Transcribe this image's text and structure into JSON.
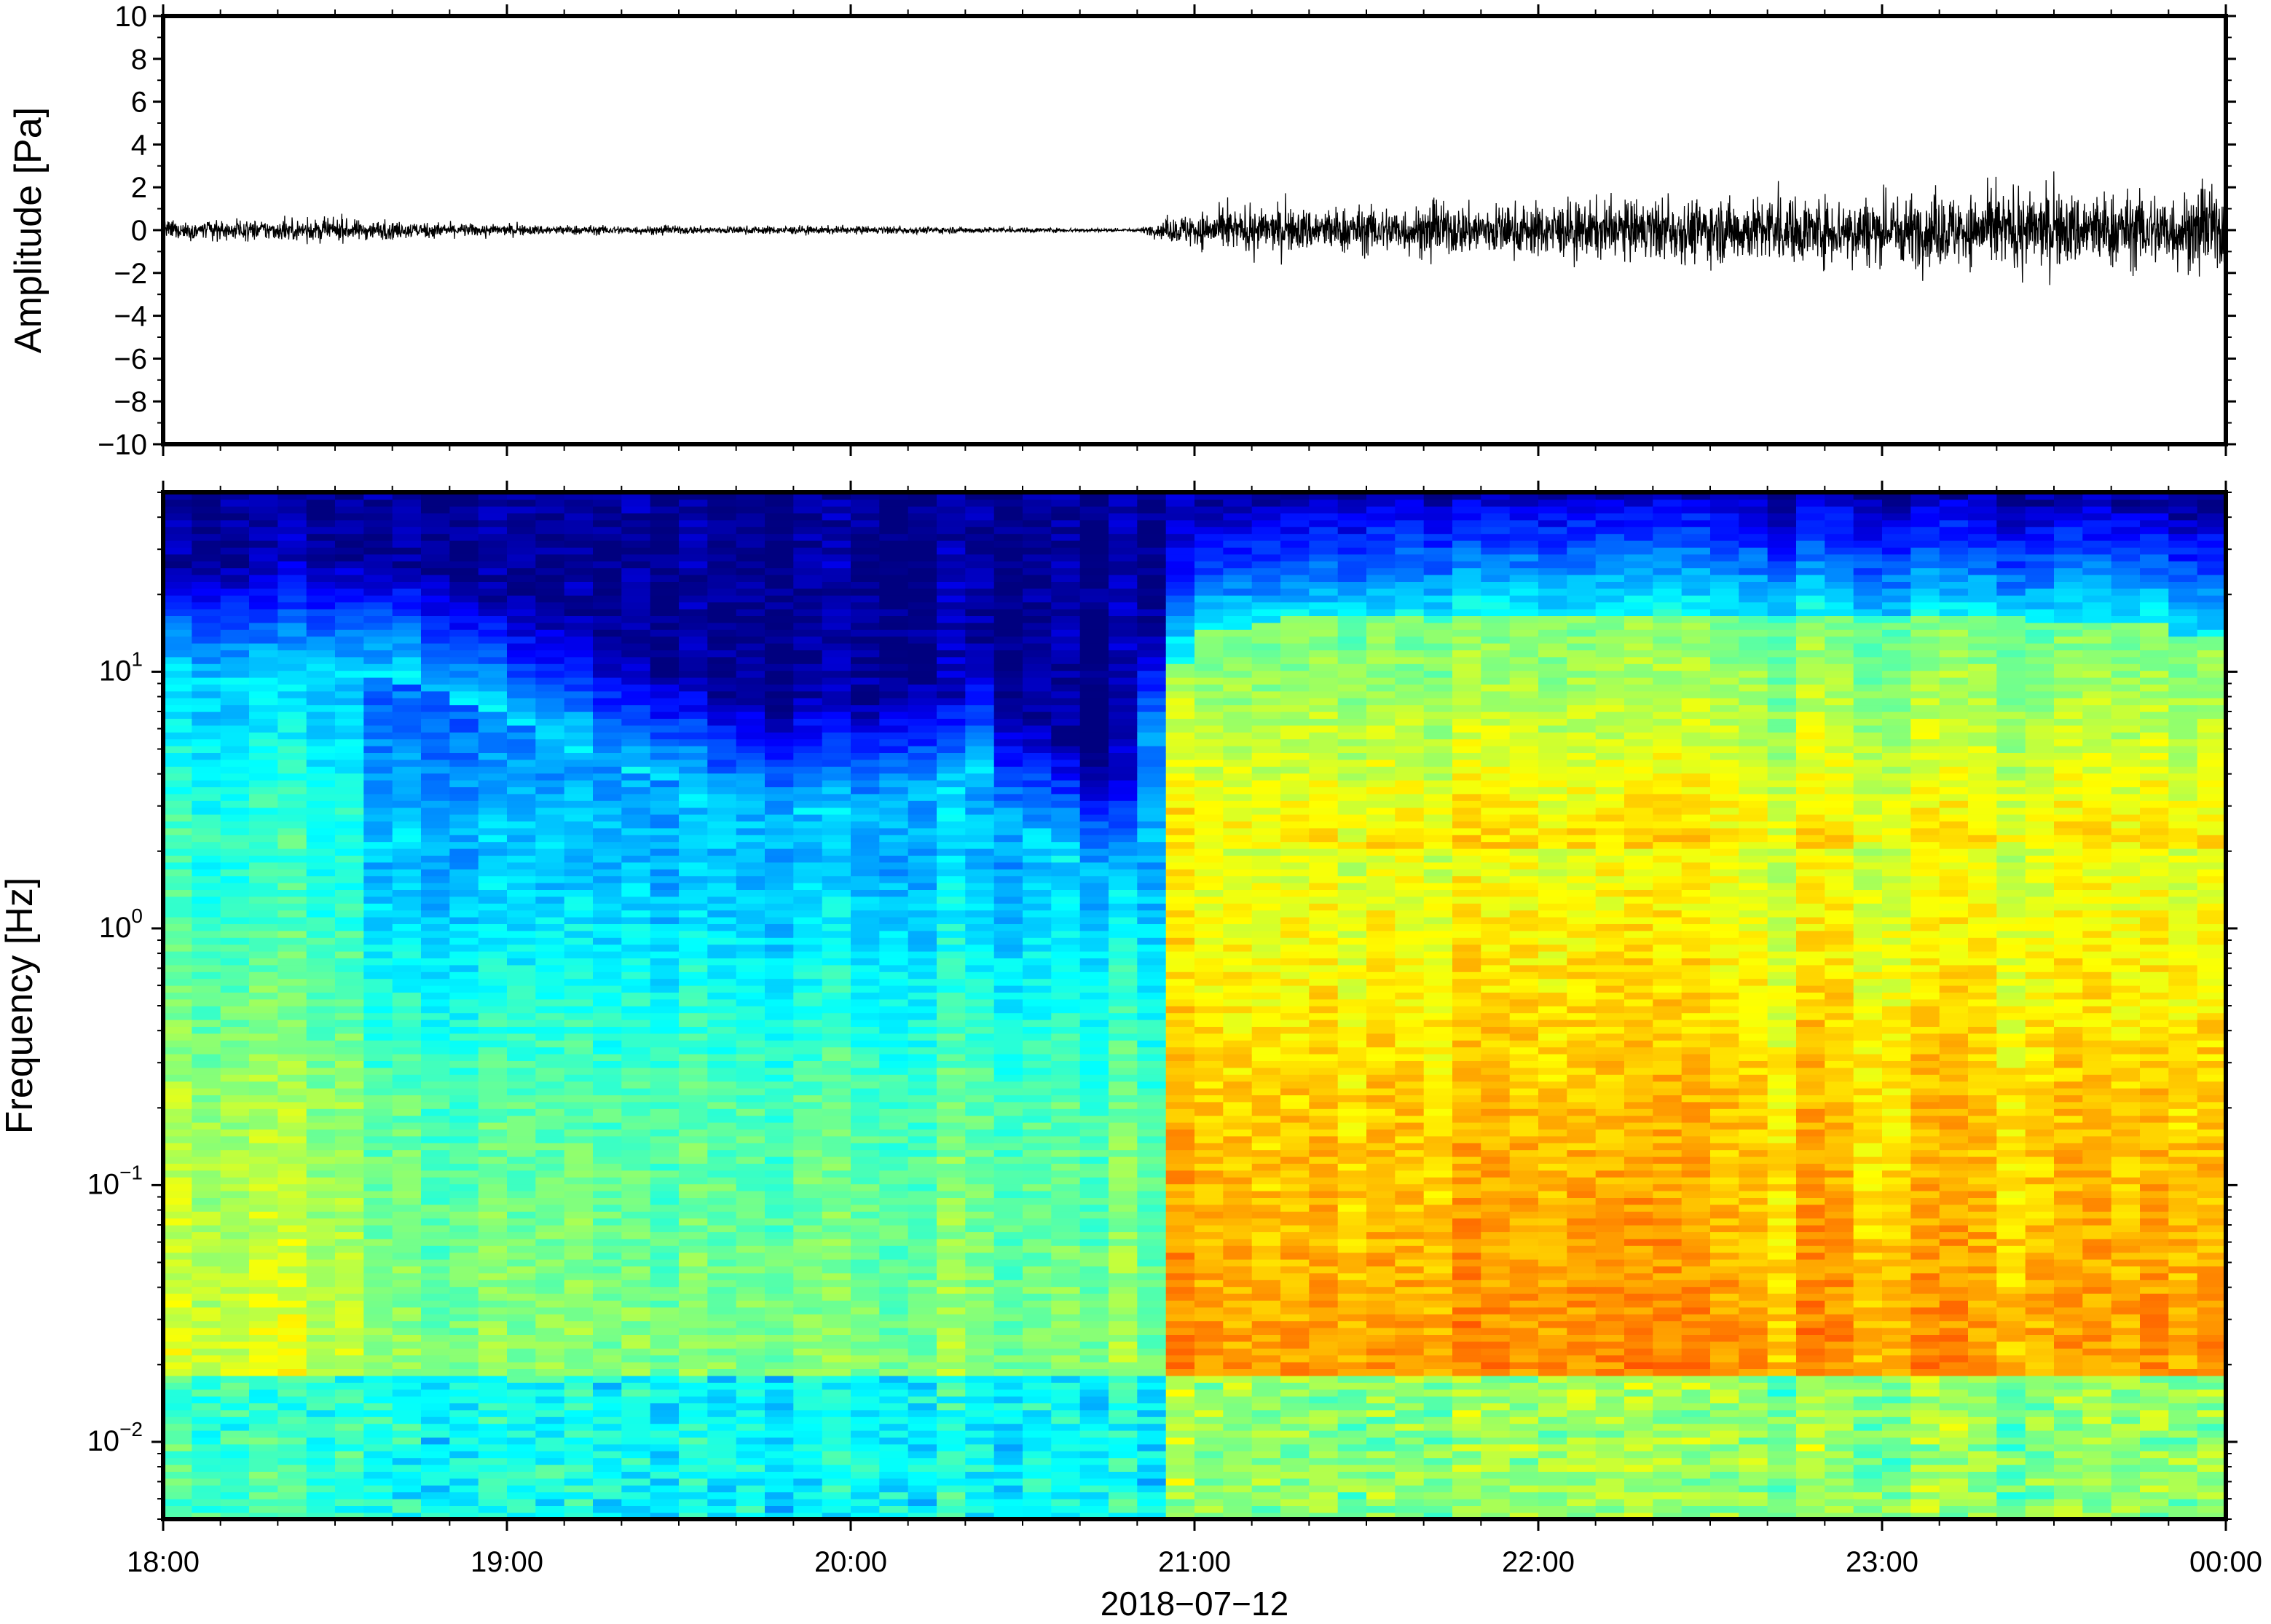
{
  "chart_data": [
    {
      "type": "line",
      "title": "",
      "xlabel": "",
      "ylabel": "Amplitude [Pa]",
      "xlim": [
        "2018-07-12 18:00",
        "2018-07-13 00:00"
      ],
      "ylim": [
        -10,
        10
      ],
      "yticks": [
        10,
        8,
        6,
        4,
        2,
        0,
        -2,
        -4,
        -6,
        -8,
        -10
      ],
      "ytick_labels": [
        "10",
        "8",
        "6",
        "4",
        "2",
        "0",
        "−2",
        "−4",
        "−6",
        "−8",
        "−10"
      ],
      "grid": false,
      "legend": "none",
      "series": [
        {
          "line_color": "#000000",
          "envelope": {
            "time": [
              "18:00",
              "18:30",
              "19:00",
              "19:30",
              "20:00",
              "20:30",
              "20:50",
              "21:00",
              "21:30",
              "22:00",
              "22:30",
              "23:00",
              "23:30",
              "00:00"
            ],
            "half_amplitude": [
              0.35,
              0.4,
              0.2,
              0.15,
              0.15,
              0.1,
              0.05,
              0.7,
              0.9,
              1.0,
              1.2,
              1.3,
              1.4,
              1.5
            ],
            "peak_abs": [
              0.7,
              0.8,
              0.4,
              0.3,
              0.3,
              0.2,
              0.1,
              1.6,
              1.9,
              2.0,
              2.3,
              2.5,
              2.8,
              2.6
            ]
          }
        }
      ]
    },
    {
      "type": "heatmap",
      "title": "",
      "xlabel": "2018−07−12",
      "ylabel": "Frequency [Hz]",
      "xlim": [
        "2018-07-12 18:00",
        "2018-07-13 00:00"
      ],
      "xticks": [
        "18:00",
        "19:00",
        "20:00",
        "21:00",
        "22:00",
        "23:00",
        "00:00"
      ],
      "ylim": [
        0.005,
        50
      ],
      "yscale": "log",
      "yticks": [
        0.01,
        0.1,
        1,
        10
      ],
      "ytick_labels": [
        {
          "base": "10",
          "exp": "−2"
        },
        {
          "base": "10",
          "exp": "−1"
        },
        {
          "base": "10",
          "exp": "0"
        },
        {
          "base": "10",
          "exp": "1"
        }
      ],
      "colormap": [
        "#00007f",
        "#0000ff",
        "#007fff",
        "#00ffff",
        "#7fff7f",
        "#ffff00",
        "#ff7f00",
        "#ff0000",
        "#7f0000"
      ],
      "time_bins": 72,
      "cutoff_frequency_hz": [
        25,
        25,
        28,
        27,
        25,
        18,
        16,
        14,
        12,
        11,
        10,
        8,
        8,
        7,
        8,
        7,
        8,
        9,
        8,
        12,
        7,
        6,
        5,
        4,
        18,
        40,
        45,
        47,
        48,
        48,
        48,
        48,
        47,
        46,
        46,
        45,
        45,
        44,
        42,
        38,
        40,
        36,
        32
      ],
      "cutoff_time_hours": [
        18.0,
        18.25,
        18.5,
        18.6,
        18.75,
        19.0,
        19.1,
        19.2,
        19.25,
        19.4,
        19.5,
        19.6,
        19.75,
        19.8,
        19.9,
        20.0,
        20.1,
        20.2,
        20.3,
        20.35,
        20.45,
        20.55,
        20.65,
        20.8,
        20.9,
        21.0,
        21.25,
        21.5,
        21.75,
        22.0,
        22.25,
        22.5,
        22.75,
        23.0,
        23.25,
        23.5,
        23.6,
        23.75,
        23.85,
        23.9,
        23.95,
        23.98,
        24.0
      ]
    }
  ]
}
